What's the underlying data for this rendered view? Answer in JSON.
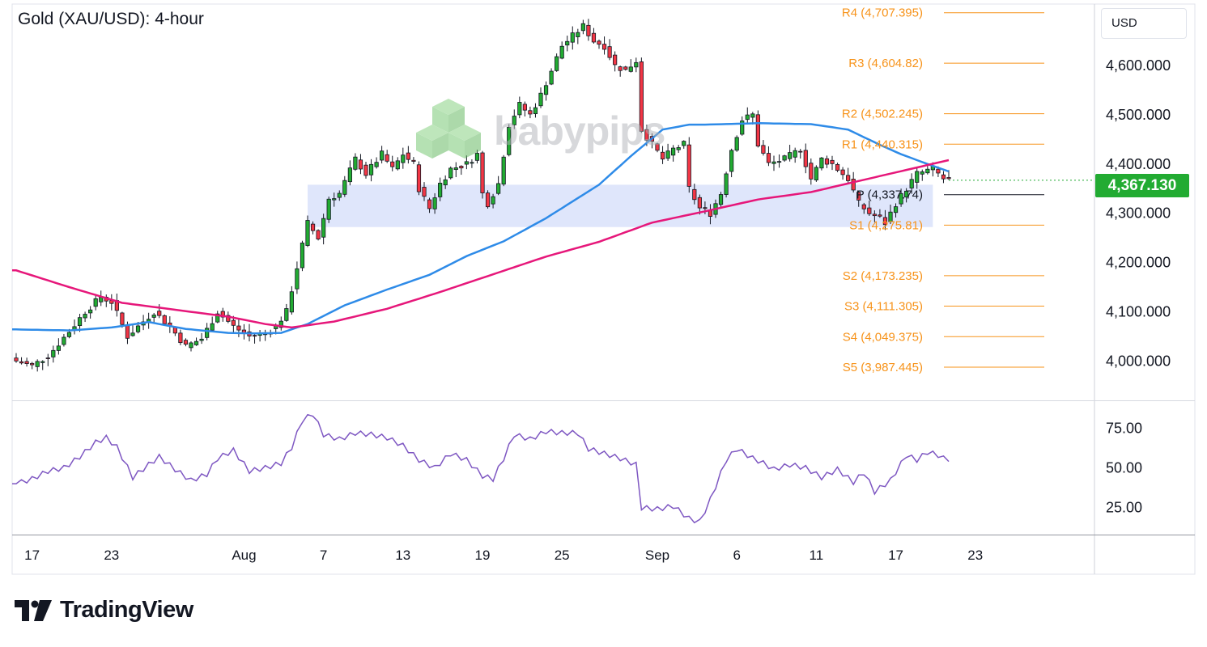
{
  "header": {
    "title": "Gold (XAU/USD): 4-hour"
  },
  "currency": "USD",
  "last_price_label": "4,367.130",
  "branding": {
    "watermark": "babypips",
    "logo_text": "TradingView"
  },
  "colors": {
    "bull": "#22ab32",
    "bear": "#f23645",
    "candle": "#131722",
    "sma_fast": "#2e8be8",
    "sma_slow": "#e6177a",
    "rsi": "#7e57c2",
    "pivot_support_resistance": "#f7931a",
    "pivot": "#131722",
    "zone": "#dbe3fb",
    "last_price_bg": "#22ab32"
  },
  "chart_data": [
    {
      "type": "candlestick",
      "title": "Gold (XAU/USD): 4-hour",
      "ylim": [
        3920,
        4725
      ],
      "y_ticks": [
        "4,000.000",
        "4,100.000",
        "4,200.000",
        "4,300.000",
        "4,400.000",
        "4,500.000",
        "4,600.000"
      ],
      "y_tick_values": [
        4000,
        4100,
        4200,
        4300,
        4400,
        4500,
        4600
      ],
      "x_ticks": [
        "17",
        "23",
        "Aug",
        "7",
        "13",
        "19",
        "25",
        "Sep",
        "6",
        "11",
        "17",
        "23"
      ],
      "x_tick_index": [
        3,
        18,
        43,
        58,
        73,
        88,
        103,
        121,
        136,
        151,
        166,
        181
      ],
      "last_price": 4367.13,
      "pivot_levels": [
        {
          "label": "R4 (4,707.395)",
          "value": 4707.395
        },
        {
          "label": "R3 (4,604.82)",
          "value": 4604.82
        },
        {
          "label": "R2 (4,502.245)",
          "value": 4502.245
        },
        {
          "label": "R1 (4,440.315)",
          "value": 4440.315
        },
        {
          "label": "P (4,337.74)",
          "value": 4337.74
        },
        {
          "label": "S1 (4,275.81)",
          "value": 4275.81
        },
        {
          "label": "S2 (4,173.235)",
          "value": 4173.235
        },
        {
          "label": "S3 (4,111.305)",
          "value": 4111.305
        },
        {
          "label": "S4 (4,049.375)",
          "value": 4049.375
        },
        {
          "label": "S5 (3,987.445)",
          "value": 3987.445
        }
      ],
      "zone": {
        "from_index": 55,
        "to_index": 173,
        "low": 4272,
        "high": 4358
      },
      "close_anchors": [
        [
          0,
          4000
        ],
        [
          3,
          3990
        ],
        [
          6,
          4010
        ],
        [
          10,
          4060
        ],
        [
          13,
          4100
        ],
        [
          16,
          4130
        ],
        [
          18,
          4120
        ],
        [
          21,
          4050
        ],
        [
          24,
          4080
        ],
        [
          26,
          4100
        ],
        [
          29,
          4070
        ],
        [
          32,
          4030
        ],
        [
          35,
          4045
        ],
        [
          38,
          4100
        ],
        [
          41,
          4070
        ],
        [
          44,
          4050
        ],
        [
          47,
          4055
        ],
        [
          49,
          4070
        ],
        [
          51,
          4100
        ],
        [
          53,
          4190
        ],
        [
          55,
          4280
        ],
        [
          57,
          4250
        ],
        [
          59,
          4330
        ],
        [
          61,
          4340
        ],
        [
          64,
          4410
        ],
        [
          66,
          4380
        ],
        [
          69,
          4420
        ],
        [
          71,
          4390
        ],
        [
          73,
          4420
        ],
        [
          75,
          4400
        ],
        [
          76,
          4350
        ],
        [
          78,
          4310
        ],
        [
          80,
          4360
        ],
        [
          82,
          4390
        ],
        [
          85,
          4400
        ],
        [
          87,
          4420
        ],
        [
          88,
          4340
        ],
        [
          89,
          4320
        ],
        [
          91,
          4360
        ],
        [
          93,
          4480
        ],
        [
          95,
          4520
        ],
        [
          97,
          4500
        ],
        [
          99,
          4540
        ],
        [
          101,
          4590
        ],
        [
          103,
          4640
        ],
        [
          105,
          4660
        ],
        [
          107,
          4680
        ],
        [
          109,
          4650
        ],
        [
          111,
          4640
        ],
        [
          113,
          4600
        ],
        [
          115,
          4590
        ],
        [
          117,
          4610
        ],
        [
          118,
          4470
        ],
        [
          120,
          4440
        ],
        [
          122,
          4410
        ],
        [
          124,
          4430
        ],
        [
          126,
          4440
        ],
        [
          127,
          4350
        ],
        [
          129,
          4310
        ],
        [
          131,
          4300
        ],
        [
          133,
          4340
        ],
        [
          135,
          4430
        ],
        [
          137,
          4490
        ],
        [
          139,
          4500
        ],
        [
          140,
          4440
        ],
        [
          142,
          4400
        ],
        [
          145,
          4410
        ],
        [
          148,
          4430
        ],
        [
          150,
          4370
        ],
        [
          152,
          4410
        ],
        [
          154,
          4400
        ],
        [
          157,
          4370
        ],
        [
          159,
          4320
        ],
        [
          161,
          4300
        ],
        [
          163,
          4290
        ],
        [
          164,
          4280
        ],
        [
          166,
          4320
        ],
        [
          168,
          4350
        ],
        [
          170,
          4380
        ],
        [
          173,
          4390
        ],
        [
          175,
          4370
        ],
        [
          176,
          4367
        ]
      ],
      "sma_fast_anchors": [
        [
          0,
          4064
        ],
        [
          10,
          4062
        ],
        [
          18,
          4068
        ],
        [
          25,
          4079
        ],
        [
          32,
          4065
        ],
        [
          40,
          4057
        ],
        [
          45,
          4056
        ],
        [
          50,
          4057
        ],
        [
          55,
          4075
        ],
        [
          62,
          4113
        ],
        [
          70,
          4145
        ],
        [
          78,
          4175
        ],
        [
          85,
          4213
        ],
        [
          92,
          4243
        ],
        [
          100,
          4290
        ],
        [
          110,
          4358
        ],
        [
          116,
          4416
        ],
        [
          122,
          4470
        ],
        [
          127,
          4480
        ],
        [
          130,
          4480
        ],
        [
          140,
          4483
        ],
        [
          150,
          4481
        ],
        [
          157,
          4470
        ],
        [
          163,
          4439
        ],
        [
          167,
          4420
        ],
        [
          172,
          4400
        ],
        [
          176,
          4385
        ]
      ],
      "sma_slow_anchors": [
        [
          0,
          4184
        ],
        [
          10,
          4150
        ],
        [
          20,
          4118
        ],
        [
          30,
          4104
        ],
        [
          40,
          4090
        ],
        [
          47,
          4075
        ],
        [
          52,
          4068
        ],
        [
          60,
          4080
        ],
        [
          70,
          4106
        ],
        [
          80,
          4140
        ],
        [
          90,
          4176
        ],
        [
          100,
          4212
        ],
        [
          110,
          4242
        ],
        [
          120,
          4281
        ],
        [
          130,
          4304
        ],
        [
          140,
          4328
        ],
        [
          150,
          4343
        ],
        [
          160,
          4368
        ],
        [
          170,
          4393
        ],
        [
          176,
          4408
        ]
      ]
    },
    {
      "type": "line",
      "name": "RSI",
      "ylim": [
        8,
        92
      ],
      "y_ticks": [
        "25.00",
        "50.00",
        "75.00"
      ],
      "y_tick_values": [
        25,
        50,
        75
      ],
      "rsi_anchors": [
        [
          0,
          40
        ],
        [
          3,
          43
        ],
        [
          6,
          48
        ],
        [
          9,
          50
        ],
        [
          12,
          57
        ],
        [
          15,
          66
        ],
        [
          17,
          69
        ],
        [
          19,
          63
        ],
        [
          22,
          44
        ],
        [
          25,
          52
        ],
        [
          27,
          57
        ],
        [
          30,
          49
        ],
        [
          33,
          42
        ],
        [
          36,
          46
        ],
        [
          38,
          56
        ],
        [
          41,
          61
        ],
        [
          44,
          48
        ],
        [
          47,
          50
        ],
        [
          50,
          53
        ],
        [
          52,
          63
        ],
        [
          54,
          80
        ],
        [
          56,
          84
        ],
        [
          58,
          71
        ],
        [
          61,
          68
        ],
        [
          64,
          72
        ],
        [
          67,
          71
        ],
        [
          70,
          69
        ],
        [
          73,
          64
        ],
        [
          76,
          55
        ],
        [
          79,
          50
        ],
        [
          82,
          59
        ],
        [
          85,
          55
        ],
        [
          88,
          45
        ],
        [
          90,
          43
        ],
        [
          92,
          56
        ],
        [
          94,
          71
        ],
        [
          97,
          68
        ],
        [
          100,
          73
        ],
        [
          103,
          72
        ],
        [
          106,
          72
        ],
        [
          108,
          62
        ],
        [
          111,
          59
        ],
        [
          114,
          56
        ],
        [
          117,
          52
        ],
        [
          118,
          25
        ],
        [
          121,
          24
        ],
        [
          124,
          26
        ],
        [
          127,
          18
        ],
        [
          129,
          16
        ],
        [
          131,
          30
        ],
        [
          134,
          55
        ],
        [
          136,
          62
        ],
        [
          139,
          56
        ],
        [
          141,
          53
        ],
        [
          143,
          49
        ],
        [
          146,
          52
        ],
        [
          149,
          50
        ],
        [
          152,
          44
        ],
        [
          155,
          49
        ],
        [
          158,
          41
        ],
        [
          160,
          47
        ],
        [
          162,
          35
        ],
        [
          165,
          42
        ],
        [
          168,
          58
        ],
        [
          170,
          55
        ],
        [
          172,
          60
        ],
        [
          174,
          58
        ],
        [
          176,
          54
        ]
      ]
    }
  ]
}
